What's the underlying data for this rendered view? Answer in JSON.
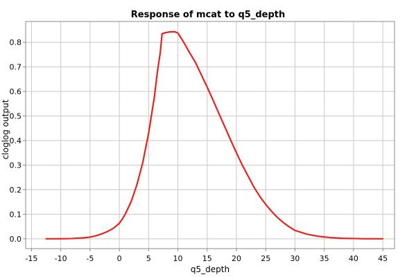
{
  "chart_data": {
    "type": "line",
    "title": "Response of mcat to q5_depth",
    "xlabel": "q5_depth",
    "ylabel": "cloglog output",
    "xlim": [
      -16,
      47
    ],
    "ylim": [
      -0.04,
      0.885
    ],
    "xticks": [
      -15,
      -10,
      -5,
      0,
      5,
      10,
      15,
      20,
      25,
      30,
      35,
      40,
      45
    ],
    "yticks": [
      0.0,
      0.1,
      0.2,
      0.3,
      0.4,
      0.5,
      0.6,
      0.7,
      0.8
    ],
    "ytick_labels": [
      "0.0",
      "0.1",
      "0.2",
      "0.3",
      "0.4",
      "0.5",
      "0.6",
      "0.7",
      "0.8"
    ],
    "grid": true,
    "line_color": "#e8211c",
    "series": [
      {
        "x": [
          -12.5,
          -10,
          -8,
          -6,
          -5,
          -4,
          -3,
          -2,
          -1,
          0,
          0.5,
          1,
          2,
          3,
          4,
          5,
          6,
          6.5,
          7,
          7.3,
          8,
          8.5,
          9,
          9.5,
          10,
          11,
          12,
          13,
          14,
          15,
          16,
          17,
          18,
          19,
          20,
          21,
          22,
          23,
          24,
          25,
          26,
          27,
          28,
          29,
          30,
          32,
          34,
          36,
          38,
          40,
          42,
          45
        ],
        "y": [
          0.0,
          0.0,
          0.001,
          0.004,
          0.007,
          0.012,
          0.02,
          0.03,
          0.043,
          0.063,
          0.08,
          0.1,
          0.15,
          0.22,
          0.31,
          0.43,
          0.58,
          0.68,
          0.76,
          0.835,
          0.84,
          0.842,
          0.843,
          0.843,
          0.838,
          0.8,
          0.758,
          0.718,
          0.668,
          0.618,
          0.565,
          0.51,
          0.457,
          0.403,
          0.35,
          0.3,
          0.255,
          0.21,
          0.172,
          0.14,
          0.112,
          0.087,
          0.066,
          0.049,
          0.034,
          0.019,
          0.01,
          0.005,
          0.002,
          0.001,
          0.0,
          0.0
        ]
      }
    ]
  }
}
